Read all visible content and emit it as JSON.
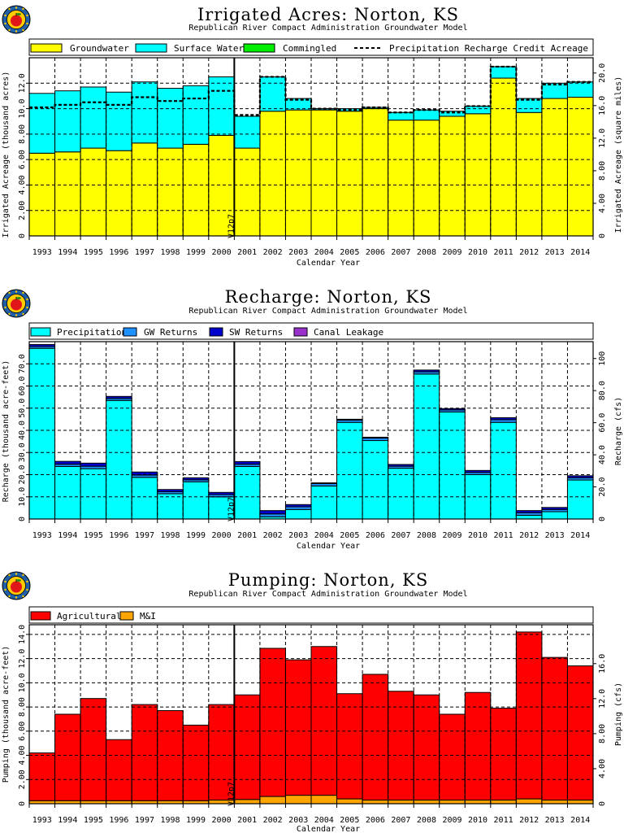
{
  "colors": {
    "groundwater": "#ffff00",
    "surface_water": "#00ffff",
    "commingled": "#00ee00",
    "precipitation": "#00ffff",
    "gw_returns": "#1e90ff",
    "sw_returns": "#0000cd",
    "canal_leakage": "#9932cc",
    "agricultural": "#ff0000",
    "mi": "#ffa500",
    "logo_ring": "#1f5fa8",
    "logo_fill": "#ffcc00",
    "logo_apple": "#e0161b"
  },
  "marker_label": "V12p7",
  "chart_data": [
    {
      "type": "bar",
      "stacked": true,
      "title": "Irrigated  Acres:  Norton,  KS",
      "subtitle": "Republican  River  Compact  Administration  Groundwater  Model",
      "xlabel": "Calendar  Year",
      "ylabel": "Irrigated  Acreage  (thousand  acres)",
      "y2label": "Irrigated  Acreage  (square  miles)",
      "categories": [
        "1993",
        "1994",
        "1995",
        "1996",
        "1997",
        "1998",
        "1999",
        "2000",
        "2001",
        "2002",
        "2003",
        "2004",
        "2005",
        "2006",
        "2007",
        "2008",
        "2009",
        "2010",
        "2011",
        "2012",
        "2013",
        "2014"
      ],
      "ylim": [
        0,
        14.0
      ],
      "yticks": [
        "2.00",
        "4.00",
        "6.00",
        "8.00",
        "10.0",
        "12.0"
      ],
      "y2lim": [
        0,
        21.875
      ],
      "y2ticks": [
        "4.00",
        "8.00",
        "12.0",
        "16.0",
        "20.0"
      ],
      "grid": true,
      "legend_position": "top",
      "legend": [
        "Groundwater",
        "Surface  Water",
        "Commingled",
        "Precipitation  Recharge  Credit  Acreage"
      ],
      "series": [
        {
          "name": "Groundwater",
          "color_key": "groundwater",
          "values": [
            6.5,
            6.6,
            6.9,
            6.7,
            7.3,
            6.9,
            7.2,
            7.9,
            6.9,
            9.8,
            9.9,
            9.9,
            9.8,
            10.0,
            9.1,
            9.1,
            9.4,
            9.6,
            12.4,
            9.7,
            10.8,
            10.9
          ]
        },
        {
          "name": "Surface  Water",
          "color_key": "surface_water",
          "values": [
            4.7,
            4.8,
            4.8,
            4.6,
            4.8,
            4.7,
            4.6,
            4.6,
            2.5,
            2.7,
            0.9,
            0.1,
            0.2,
            0.1,
            0.6,
            0.8,
            0.4,
            0.6,
            0.9,
            1.1,
            1.2,
            1.2
          ]
        },
        {
          "name": "Commingled",
          "color_key": "commingled",
          "values": [
            0,
            0,
            0,
            0,
            0,
            0,
            0,
            0,
            0,
            0,
            0,
            0,
            0,
            0,
            0,
            0,
            0,
            0,
            0,
            0,
            0,
            0
          ]
        }
      ],
      "line_series": {
        "name": "Precipitation  Recharge  Credit  Acreage",
        "values": [
          10.1,
          10.3,
          10.5,
          10.3,
          10.9,
          10.6,
          10.8,
          11.4,
          9.5,
          12.5,
          10.7,
          10.0,
          9.9,
          10.1,
          9.7,
          9.9,
          9.7,
          10.2,
          13.3,
          10.7,
          11.9,
          12.1
        ]
      }
    },
    {
      "type": "bar",
      "stacked": true,
      "title": "Recharge:  Norton,  KS",
      "subtitle": "Republican  River  Compact  Administration  Groundwater  Model",
      "xlabel": "Calendar  Year",
      "ylabel": "Recharge  (thousand  acre-feet)",
      "y2label": "Recharge  (cfs)",
      "categories": [
        "1993",
        "1994",
        "1995",
        "1996",
        "1997",
        "1998",
        "1999",
        "2000",
        "2001",
        "2002",
        "2003",
        "2004",
        "2005",
        "2006",
        "2007",
        "2008",
        "2009",
        "2010",
        "2011",
        "2012",
        "2013",
        "2014"
      ],
      "ylim": [
        0,
        80.0
      ],
      "yticks": [
        "10.0",
        "20.0",
        "30.0",
        "40.0",
        "50.0",
        "60.0",
        "70.0"
      ],
      "y2lim": [
        0,
        110.5
      ],
      "y2ticks": [
        "20.0",
        "40.0",
        "60.0",
        "80.0",
        "100"
      ],
      "grid": true,
      "legend_position": "top",
      "legend": [
        "Precipitation",
        "GW  Returns",
        "SW  Returns",
        "Canal  Leakage"
      ],
      "series": [
        {
          "name": "Precipitation",
          "color_key": "precipitation",
          "values": [
            77.0,
            23.7,
            22.7,
            53.5,
            18.8,
            11.4,
            16.8,
            10.0,
            23.7,
            1.0,
            4.3,
            14.9,
            43.6,
            35.4,
            22.9,
            65.4,
            48.3,
            20.0,
            43.6,
            1.7,
            3.3,
            17.6
          ]
        },
        {
          "name": "GW  Returns",
          "color_key": "gw_returns",
          "values": [
            0.8,
            1.0,
            1.1,
            0.9,
            1.0,
            0.9,
            0.9,
            1.0,
            1.0,
            1.3,
            1.2,
            1.1,
            1.0,
            1.1,
            0.9,
            1.0,
            0.9,
            1.0,
            1.2,
            1.1,
            1.0,
            1.0
          ]
        },
        {
          "name": "SW  Returns",
          "color_key": "sw_returns",
          "values": [
            0.9,
            1.3,
            1.4,
            0.9,
            1.4,
            1.0,
            0.9,
            1.0,
            1.2,
            1.5,
            1.0,
            0.3,
            0.4,
            0.4,
            0.8,
            0.8,
            0.6,
            0.9,
            0.9,
            1.0,
            0.9,
            0.9
          ]
        },
        {
          "name": "Canal  Leakage",
          "color_key": "canal_leakage",
          "values": [
            0,
            0,
            0,
            0,
            0,
            0,
            0,
            0,
            0,
            0,
            0,
            0,
            0,
            0,
            0,
            0,
            0,
            0,
            0,
            0,
            0,
            0
          ]
        }
      ]
    },
    {
      "type": "bar",
      "stacked": true,
      "title": "Pumping:  Norton,  KS",
      "subtitle": "Republican  River  Compact  Administration  Groundwater  Model",
      "xlabel": "Calendar  Year",
      "ylabel": "Pumping  (thousand  acre-feet)",
      "y2label": "Pumping  (cfs)",
      "categories": [
        "1993",
        "1994",
        "1995",
        "1996",
        "1997",
        "1998",
        "1999",
        "2000",
        "2001",
        "2002",
        "2003",
        "2004",
        "2005",
        "2006",
        "2007",
        "2008",
        "2009",
        "2010",
        "2011",
        "2012",
        "2013",
        "2014"
      ],
      "ylim": [
        0,
        14.8
      ],
      "yticks": [
        "2.00",
        "4.00",
        "6.00",
        "8.00",
        "10.0",
        "12.0",
        "14.0"
      ],
      "y2lim": [
        0,
        20.44
      ],
      "y2ticks": [
        "4.00",
        "8.00",
        "12.0",
        "16.0"
      ],
      "grid": true,
      "legend_position": "top",
      "legend": [
        "Agricultural",
        "M&I"
      ],
      "series": [
        {
          "name": "M&I",
          "color_key": "mi",
          "values": [
            0.25,
            0.25,
            0.25,
            0.25,
            0.25,
            0.25,
            0.25,
            0.3,
            0.35,
            0.6,
            0.7,
            0.7,
            0.4,
            0.3,
            0.3,
            0.3,
            0.3,
            0.3,
            0.3,
            0.4,
            0.3,
            0.3
          ]
        },
        {
          "name": "Agricultural",
          "color_key": "agricultural",
          "values": [
            3.95,
            7.15,
            8.45,
            5.05,
            7.95,
            7.45,
            6.25,
            7.9,
            8.65,
            12.25,
            11.2,
            12.3,
            8.7,
            10.4,
            9.0,
            8.7,
            7.1,
            8.9,
            7.6,
            13.8,
            11.8,
            11.1
          ]
        }
      ]
    }
  ]
}
